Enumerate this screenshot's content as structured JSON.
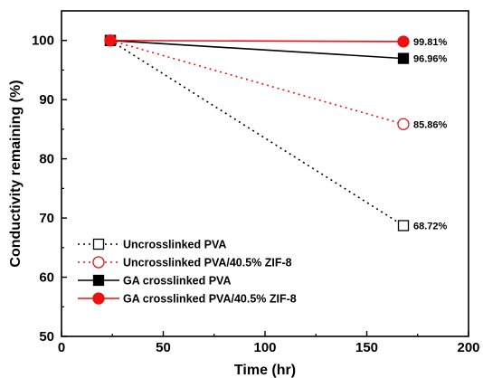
{
  "chart_data": {
    "type": "line",
    "title": "",
    "xlabel": "Time (hr)",
    "ylabel": "Conductivity remaining (%)",
    "xlim": [
      0,
      200
    ],
    "ylim": [
      50,
      105
    ],
    "xticks": [
      0,
      50,
      100,
      150,
      200
    ],
    "yticks": [
      50,
      60,
      70,
      80,
      90,
      100
    ],
    "grid": false,
    "legend_position": "bottom-left",
    "series": [
      {
        "name": "Uncrosslinked PVA",
        "x": [
          24,
          168
        ],
        "y": [
          100,
          68.72
        ],
        "color": "#000000",
        "line_style": "dotted",
        "marker": "square-open",
        "end_label": "68.72%"
      },
      {
        "name": "Uncrosslinked PVA/40.5% ZIF-8",
        "x": [
          24,
          168
        ],
        "y": [
          100,
          85.86
        ],
        "color": "#ee1111",
        "line_style": "dotted",
        "marker": "circle-open",
        "end_label": "85.86%"
      },
      {
        "name": "GA crosslinked PVA",
        "x": [
          24,
          168
        ],
        "y": [
          100,
          96.96
        ],
        "color": "#000000",
        "line_style": "solid",
        "marker": "square-filled",
        "end_label": "96.96%"
      },
      {
        "name": "GA crosslinked PVA/40.5% ZIF-8",
        "x": [
          24,
          168
        ],
        "y": [
          100,
          99.81
        ],
        "color": "#ee1111",
        "line_style": "solid",
        "marker": "circle-filled",
        "end_label": "99.81%"
      }
    ]
  }
}
